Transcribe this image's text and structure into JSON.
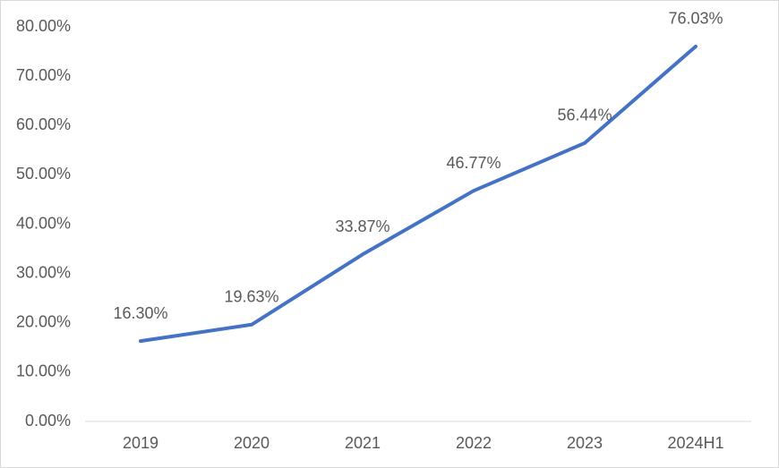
{
  "chart_data": {
    "type": "line",
    "categories": [
      "2019",
      "2020",
      "2021",
      "2022",
      "2023",
      "2024H1"
    ],
    "series": [
      {
        "color": "#4472c4",
        "values": [
          16.3,
          19.63,
          33.87,
          46.77,
          56.44,
          76.03
        ],
        "value_labels": [
          "16.30%",
          "19.63%",
          "33.87%",
          "46.77%",
          "56.44%",
          "76.03%"
        ]
      }
    ],
    "ylim": [
      0,
      80
    ],
    "yticks": [
      {
        "value": 0,
        "label": "0.00%"
      },
      {
        "value": 10,
        "label": "10.00%"
      },
      {
        "value": 20,
        "label": "20.00%"
      },
      {
        "value": 30,
        "label": "30.00%"
      },
      {
        "value": 40,
        "label": "40.00%"
      },
      {
        "value": 50,
        "label": "50.00%"
      },
      {
        "value": 60,
        "label": "60.00%"
      },
      {
        "value": 70,
        "label": "70.00%"
      },
      {
        "value": 80,
        "label": "80.00%"
      }
    ],
    "grid": false
  }
}
